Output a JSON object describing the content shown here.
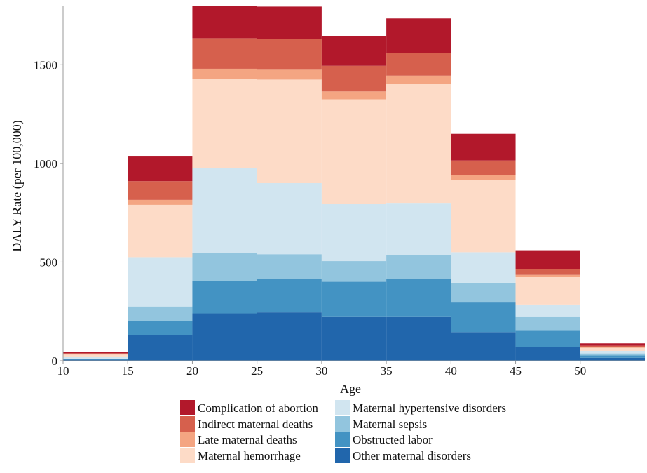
{
  "chart_data": {
    "type": "bar",
    "stacked": true,
    "xlabel": "Age",
    "ylabel": "DALY Rate (per 100,000)",
    "x_ticks": [
      "10",
      "15",
      "20",
      "25",
      "30",
      "35",
      "40",
      "45",
      "50"
    ],
    "y_ticks": [
      "0",
      "500",
      "1000",
      "1500"
    ],
    "xlim": [
      10,
      55
    ],
    "ylim": [
      0,
      1800
    ],
    "grid": false,
    "legend_position": "bottom",
    "bins": [
      [
        10,
        15
      ],
      [
        15,
        20
      ],
      [
        20,
        25
      ],
      [
        25,
        30
      ],
      [
        30,
        35
      ],
      [
        35,
        40
      ],
      [
        40,
        45
      ],
      [
        45,
        50
      ],
      [
        50,
        55
      ]
    ],
    "series": [
      {
        "name": "Other maternal disorders",
        "color": "#2166ac",
        "values": [
          5,
          130,
          240,
          245,
          225,
          225,
          145,
          70,
          15
        ]
      },
      {
        "name": "Obstructed labor",
        "color": "#4393c3",
        "values": [
          3,
          70,
          165,
          170,
          175,
          190,
          150,
          85,
          12
        ]
      },
      {
        "name": "Maternal sepsis",
        "color": "#92c5de",
        "values": [
          3,
          75,
          140,
          125,
          105,
          120,
          100,
          70,
          10
        ]
      },
      {
        "name": "Maternal hypertensive disorders",
        "color": "#d1e5f0",
        "values": [
          8,
          250,
          430,
          360,
          290,
          265,
          155,
          60,
          13
        ]
      },
      {
        "name": "Maternal hemorrhage",
        "color": "#fddbc7",
        "values": [
          12,
          265,
          455,
          525,
          530,
          605,
          365,
          140,
          15
        ]
      },
      {
        "name": "Late maternal deaths",
        "color": "#f4a582",
        "values": [
          2,
          25,
          50,
          50,
          40,
          40,
          25,
          10,
          3
        ]
      },
      {
        "name": "Indirect maternal deaths",
        "color": "#d6604d",
        "values": [
          5,
          95,
          155,
          155,
          130,
          115,
          75,
          30,
          8
        ]
      },
      {
        "name": "Complication of abortion",
        "color": "#b2182b",
        "values": [
          6,
          125,
          165,
          165,
          150,
          175,
          135,
          95,
          12
        ]
      }
    ],
    "legend_order": [
      "Complication of abortion",
      "Indirect maternal deaths",
      "Late maternal deaths",
      "Maternal hemorrhage",
      "Maternal hypertensive disorders",
      "Maternal sepsis",
      "Obstructed labor",
      "Other maternal disorders"
    ]
  }
}
